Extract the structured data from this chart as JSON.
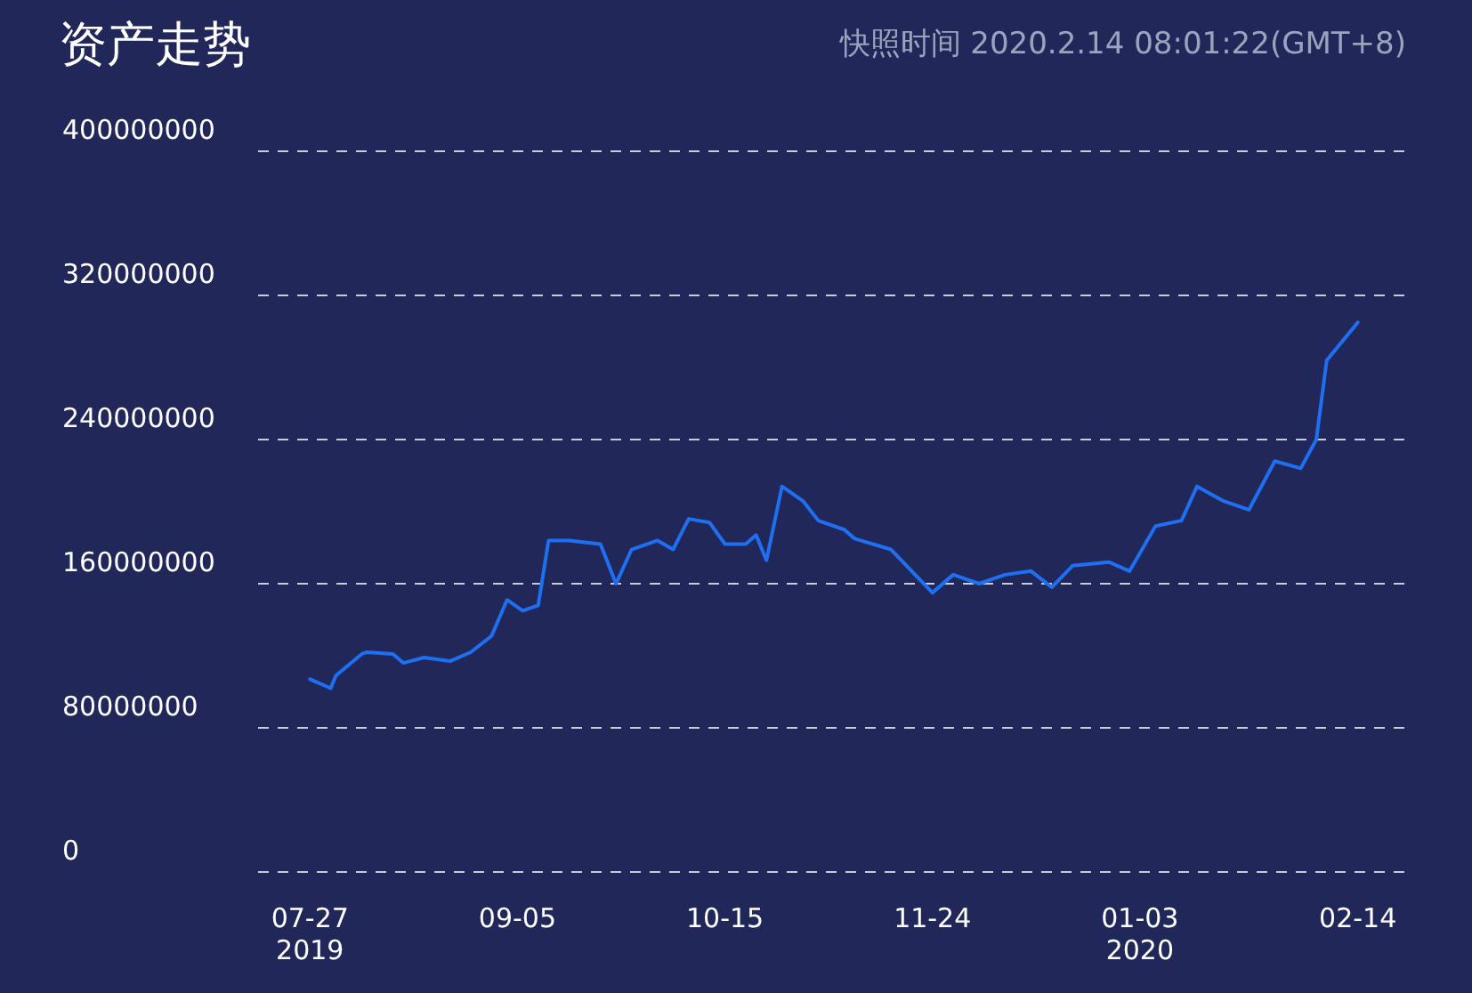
{
  "chart_data": {
    "type": "line",
    "title": "资产走势",
    "subtitle": "快照时间 2020.2.14 08:01:22(GMT+8)",
    "x": [
      "2019-07-27",
      "2019-07-31",
      "2019-08-01",
      "2019-08-06",
      "2019-08-07",
      "2019-08-12",
      "2019-08-14",
      "2019-08-18",
      "2019-08-23",
      "2019-08-27",
      "2019-08-31",
      "2019-09-03",
      "2019-09-06",
      "2019-09-09",
      "2019-09-11",
      "2019-09-15",
      "2019-09-21",
      "2019-09-24",
      "2019-09-27",
      "2019-10-02",
      "2019-10-05",
      "2019-10-08",
      "2019-10-12",
      "2019-10-15",
      "2019-10-19",
      "2019-10-21",
      "2019-10-23",
      "2019-10-26",
      "2019-10-30",
      "2019-11-02",
      "2019-11-07",
      "2019-11-09",
      "2019-11-16",
      "2019-11-24",
      "2019-11-28",
      "2019-12-03",
      "2019-12-08",
      "2019-12-13",
      "2019-12-17",
      "2019-12-21",
      "2019-12-28",
      "2020-01-01",
      "2020-01-06",
      "2020-01-11",
      "2020-01-14",
      "2020-01-19",
      "2020-01-24",
      "2020-01-29",
      "2020-02-03",
      "2020-02-06",
      "2020-02-08",
      "2020-02-14"
    ],
    "series": [
      {
        "color": "#1f6ff2",
        "values": [
          107000000,
          102000000,
          109000000,
          121000000,
          122000000,
          121000000,
          116000000,
          119000000,
          117000000,
          122000000,
          131000000,
          151000000,
          145000000,
          148000000,
          184000000,
          184000000,
          182000000,
          160000000,
          179000000,
          184000000,
          179000000,
          196000000,
          194000000,
          182000000,
          182000000,
          187000000,
          173000000,
          214000000,
          206000000,
          195000000,
          190000000,
          185000000,
          179000000,
          155000000,
          165000000,
          160000000,
          165000000,
          167000000,
          158000000,
          170000000,
          172000000,
          167000000,
          192000000,
          195000000,
          214000000,
          206000000,
          201000000,
          228000000,
          224000000,
          240000000,
          284000000,
          305000000
        ]
      }
    ],
    "xlim": [
      "2019-07-17",
      "2020-02-24"
    ],
    "xticks": [
      {
        "value": "2019-07-27",
        "label": "07-27\n2019"
      },
      {
        "value": "2019-09-05",
        "label": "09-05"
      },
      {
        "value": "2019-10-15",
        "label": "10-15"
      },
      {
        "value": "2019-11-24",
        "label": "11-24"
      },
      {
        "value": "2020-01-03",
        "label": "01-03\n2020"
      },
      {
        "value": "2020-02-14",
        "label": "02-14"
      }
    ],
    "ylim": [
      0,
      400000000
    ],
    "yticks": [
      0,
      80000000,
      160000000,
      240000000,
      320000000,
      400000000
    ],
    "grid": "y",
    "marker": "none",
    "line_style": "solid"
  }
}
